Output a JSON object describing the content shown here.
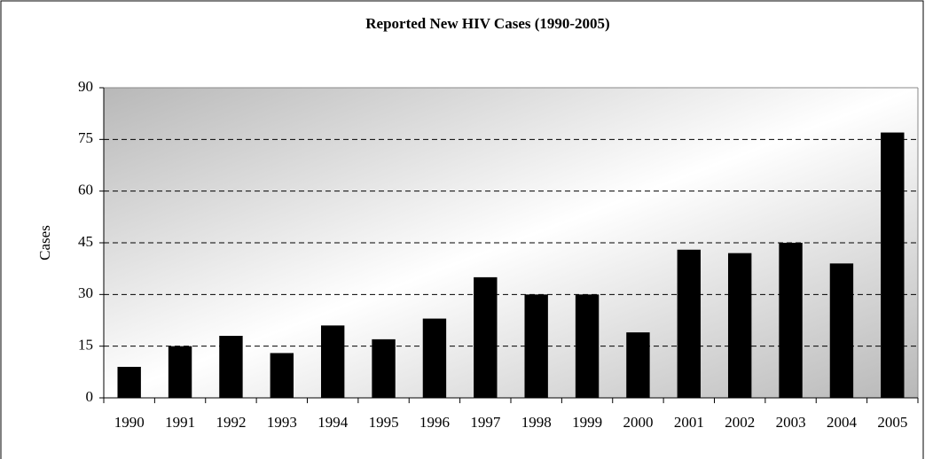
{
  "chart_data": {
    "type": "bar",
    "title": "Reported New HIV Cases (1990-2005)",
    "y_label": "Cases",
    "categories": [
      "1990",
      "1991",
      "1992",
      "1993",
      "1994",
      "1995",
      "1996",
      "1997",
      "1998",
      "1999",
      "2000",
      "2001",
      "2002",
      "2003",
      "2004",
      "2005"
    ],
    "values": [
      9,
      15,
      18,
      13,
      21,
      17,
      23,
      35,
      30,
      30,
      19,
      43,
      42,
      45,
      39,
      77
    ],
    "color": "#000000",
    "ylim": [
      0,
      90
    ],
    "yticks": [
      0,
      15,
      30,
      45,
      60,
      75,
      90
    ],
    "grid": true
  }
}
